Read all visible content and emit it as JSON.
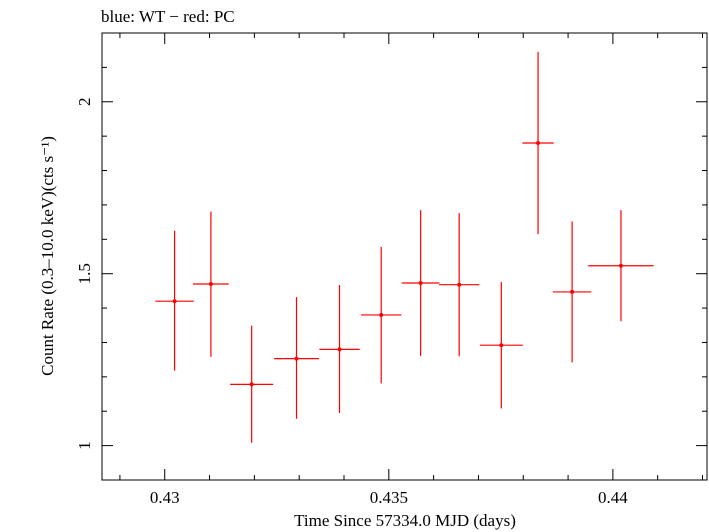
{
  "chart_data": {
    "type": "scatter",
    "title": "blue: WT − red: PC",
    "xlabel": "Time Since 57334.0 MJD (days)",
    "ylabel": "Count Rate (0.3–10.0 keV)(cts s⁻¹)",
    "xlim": [
      0.4286,
      0.4421
    ],
    "ylim": [
      0.9,
      2.2
    ],
    "x_ticks": [
      0.43,
      0.435,
      0.44
    ],
    "x_tick_labels": [
      "0.43",
      "0.435",
      "0.44"
    ],
    "y_ticks": [
      1,
      1.5,
      2
    ],
    "y_tick_labels": [
      "1",
      "1.5",
      "2"
    ],
    "grid": false,
    "series": [
      {
        "color": "#ff0000",
        "points": [
          {
            "x": 0.43022,
            "y": 1.42,
            "xerr": 0.00043,
            "yerr_low": 0.202,
            "yerr_high": 0.205
          },
          {
            "x": 0.43103,
            "y": 1.47,
            "xerr": 0.0004,
            "yerr_low": 0.212,
            "yerr_high": 0.211
          },
          {
            "x": 0.43194,
            "y": 1.178,
            "xerr": 0.00048,
            "yerr_low": 0.17,
            "yerr_high": 0.171
          },
          {
            "x": 0.43294,
            "y": 1.253,
            "xerr": 0.0005,
            "yerr_low": 0.175,
            "yerr_high": 0.179
          },
          {
            "x": 0.4339,
            "y": 1.28,
            "xerr": 0.00045,
            "yerr_low": 0.185,
            "yerr_high": 0.187
          },
          {
            "x": 0.43483,
            "y": 1.38,
            "xerr": 0.00045,
            "yerr_low": 0.199,
            "yerr_high": 0.198
          },
          {
            "x": 0.43571,
            "y": 1.473,
            "xerr": 0.00042,
            "yerr_low": 0.212,
            "yerr_high": 0.212
          },
          {
            "x": 0.43657,
            "y": 1.468,
            "xerr": 0.00045,
            "yerr_low": 0.208,
            "yerr_high": 0.208
          },
          {
            "x": 0.43751,
            "y": 1.292,
            "xerr": 0.00048,
            "yerr_low": 0.184,
            "yerr_high": 0.184
          },
          {
            "x": 0.43833,
            "y": 1.88,
            "xerr": 0.00035,
            "yerr_low": 0.265,
            "yerr_high": 0.265
          },
          {
            "x": 0.43909,
            "y": 1.447,
            "xerr": 0.00043,
            "yerr_low": 0.205,
            "yerr_high": 0.205
          },
          {
            "x": 0.44018,
            "y": 1.523,
            "xerr": 0.00073,
            "yerr_low": 0.161,
            "yerr_high": 0.162
          }
        ]
      }
    ]
  }
}
